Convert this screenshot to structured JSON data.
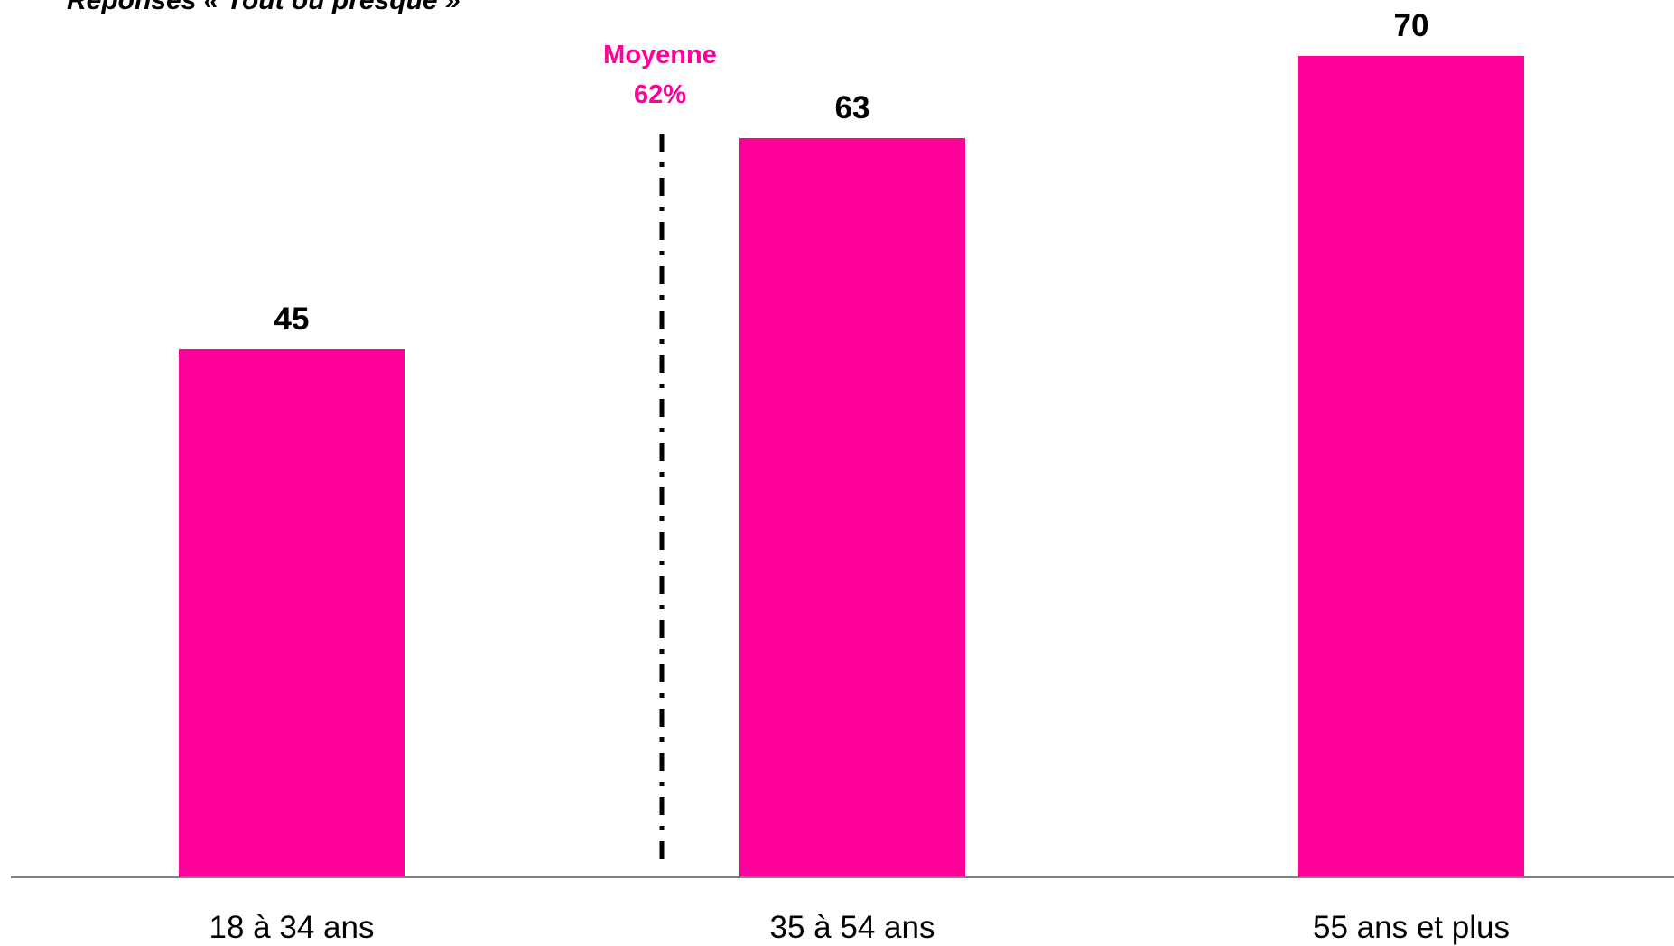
{
  "chart_data": {
    "type": "bar",
    "title": "Réponses « Tout ou presque »",
    "categories": [
      "18 à 34 ans",
      "35 à 54 ans",
      "55 ans et plus"
    ],
    "values": [
      45,
      63,
      70
    ],
    "data_labels": [
      "45",
      "63",
      "70"
    ],
    "ylim": [
      0,
      70
    ],
    "xlabel": "",
    "ylabel": "",
    "grid": false,
    "bar_color": "#FF0099",
    "reference_line": {
      "label_line1": "Moyenne",
      "label_line2": "62%",
      "value": 62,
      "style": "dash-dot",
      "color": "#000000",
      "label_color": "#FF0099",
      "between": [
        "18 à 34 ans",
        "35 à 54 ans"
      ]
    }
  }
}
